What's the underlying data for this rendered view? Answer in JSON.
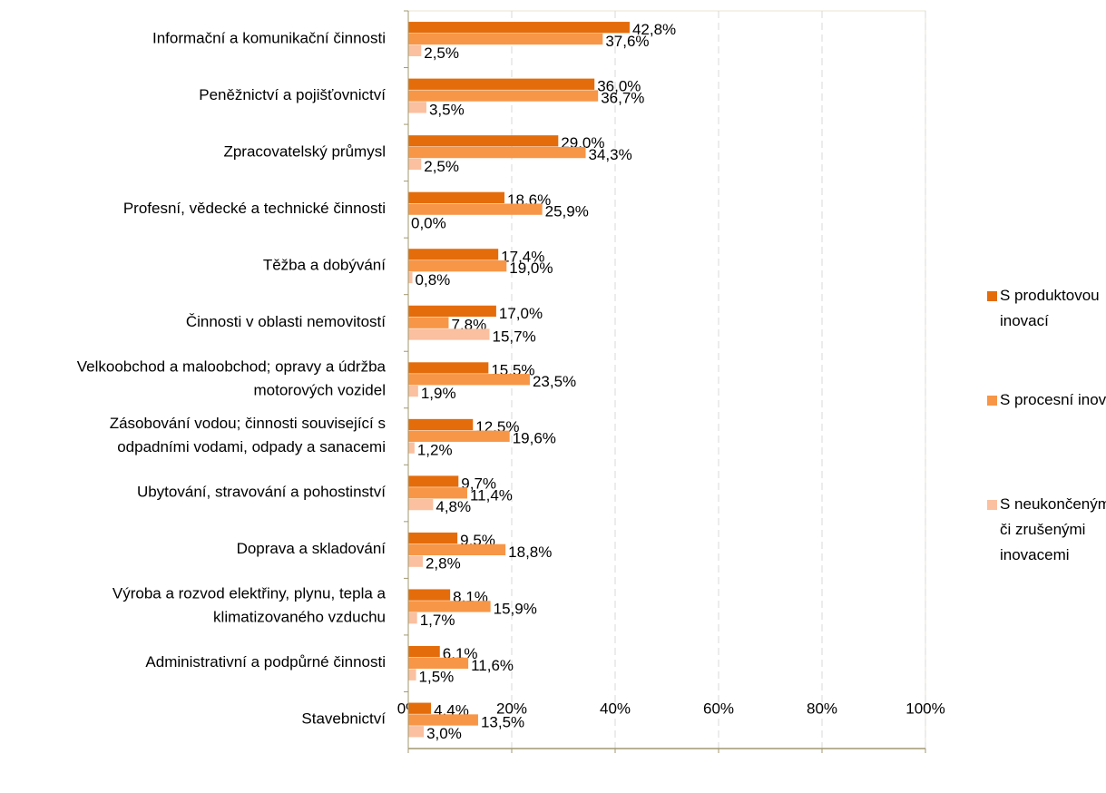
{
  "chart_data": {
    "type": "hbar",
    "categories": [
      "Informační a komunikační činnosti",
      "Peněžnictví a pojišťovnictví",
      "Zpracovatelský průmysl",
      "Profesní, vědecké a technické činnosti",
      "Těžba a dobývání",
      "Činnosti v oblasti nemovitostí",
      "Velkoobchod a maloobchod; opravy a údržba\nmotorových vozidel",
      "Zásobování vodou; činnosti související s\nodpadními vodami, odpady a sanacemi",
      "Ubytování, stravování a pohostinství",
      "Doprava a skladování",
      "Výroba a rozvod elektřiny, plynu, tepla a\nklimatizovaného vzduchu",
      "Administrativní a podpůrné činnosti",
      "Stavebnictví"
    ],
    "series": [
      {
        "name": "S produktovou\ninovací",
        "color": "#e46c0a",
        "values": [
          42.8,
          36.0,
          29.0,
          18.6,
          17.4,
          17.0,
          15.5,
          12.5,
          9.7,
          9.5,
          8.1,
          6.1,
          4.4
        ],
        "value_labels": [
          "42,8%",
          "36,0%",
          "29,0%",
          "18,6%",
          "17,4%",
          "17,0%",
          "15,5%",
          "12,5%",
          "9,7%",
          "9,5%",
          "8,1%",
          "6,1%",
          "4,4%"
        ]
      },
      {
        "name": "S procesní inovací",
        "color": "#f79646",
        "values": [
          37.6,
          36.7,
          34.3,
          25.9,
          19.0,
          7.8,
          23.5,
          19.6,
          11.4,
          18.8,
          15.9,
          11.6,
          13.5
        ],
        "value_labels": [
          "37,6%",
          "36,7%",
          "34,3%",
          "25,9%",
          "19,0%",
          "7,8%",
          "23,5%",
          "19,6%",
          "11,4%",
          "18,8%",
          "15,9%",
          "11,6%",
          "13,5%"
        ]
      },
      {
        "name": "S neukončenými\nči zrušenými\ninovacemi",
        "color": "#fac0a0",
        "values": [
          2.5,
          3.5,
          2.5,
          0.0,
          0.8,
          15.7,
          1.9,
          1.2,
          4.8,
          2.8,
          1.7,
          1.5,
          3.0
        ],
        "value_labels": [
          "2,5%",
          "3,5%",
          "2,5%",
          "0,0%",
          "0,8%",
          "15,7%",
          "1,9%",
          "1,2%",
          "4,8%",
          "2,8%",
          "1,7%",
          "1,5%",
          "3,0%"
        ]
      }
    ],
    "xlim": [
      0,
      100
    ],
    "xticks": [
      {
        "value": 0,
        "label": "0%"
      },
      {
        "value": 20,
        "label": "20%"
      },
      {
        "value": 40,
        "label": "40%"
      },
      {
        "value": 60,
        "label": "60%"
      },
      {
        "value": 80,
        "label": "80%"
      },
      {
        "value": 100,
        "label": "100%"
      }
    ],
    "grid": true,
    "legend": "right"
  }
}
